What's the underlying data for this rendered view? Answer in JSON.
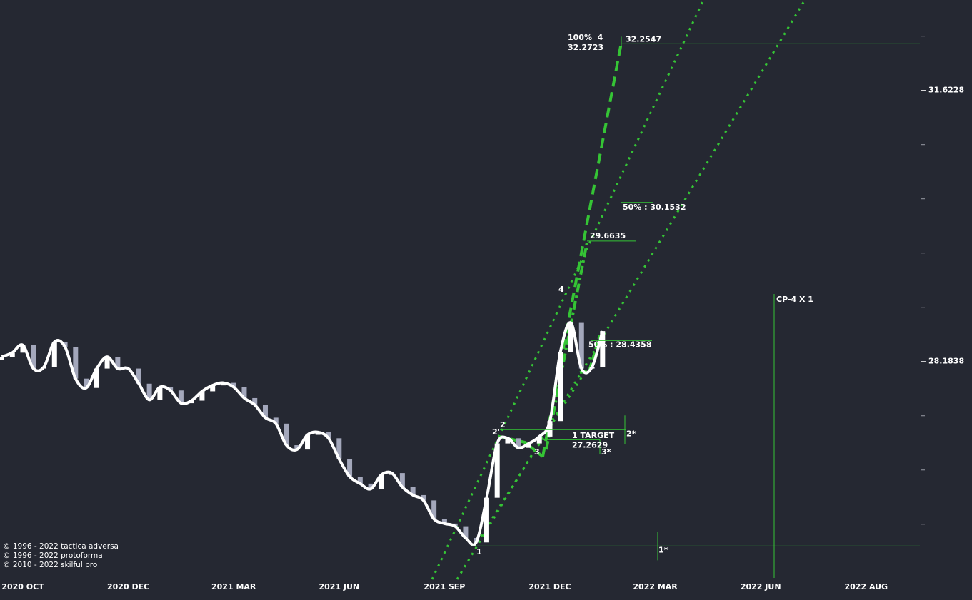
{
  "chart_data": {
    "type": "candlestick",
    "log_scale": true,
    "ylim": [
      25.71,
      32.86
    ],
    "yticks": [
      31.6228,
      28.1838
    ],
    "minor_yticks": [
      32.3594,
      30.903,
      30.1995,
      29.5121,
      28.8403,
      27.5423,
      26.9153,
      26.3027
    ],
    "categories": [
      null,
      null,
      "2020 OCT",
      null,
      null,
      null,
      null,
      null,
      null,
      null,
      null,
      null,
      "2020 DEC",
      null,
      null,
      null,
      null,
      null,
      null,
      null,
      null,
      null,
      "2021 MAR",
      null,
      null,
      null,
      null,
      null,
      null,
      null,
      null,
      null,
      "2021 JUN",
      null,
      null,
      null,
      null,
      null,
      null,
      null,
      null,
      null,
      "2021 SEP",
      null,
      null,
      null,
      null,
      null,
      null,
      null,
      null,
      null,
      "2021 DEC",
      null,
      null,
      null,
      null,
      null,
      null,
      null,
      null,
      null,
      "2022 MAR",
      null,
      null,
      null,
      null,
      null,
      null,
      null,
      null,
      null,
      "2022 JUN",
      null,
      null,
      null,
      null,
      null,
      null,
      null,
      null,
      null,
      "2022 AUG",
      null,
      null,
      null
    ],
    "open": [
      28.2,
      28.24,
      28.29,
      28.38,
      28.1,
      28.12,
      28.42,
      28.36,
      27.98,
      27.87,
      28.1,
      28.24,
      28.1,
      28.1,
      27.92,
      27.73,
      27.88,
      27.84,
      27.69,
      27.72,
      27.83,
      27.9,
      27.93,
      27.88,
      27.75,
      27.67,
      27.52,
      27.45,
      27.2,
      27.15,
      27.32,
      27.35,
      27.28,
      27.04,
      26.84,
      26.76,
      26.7,
      26.86,
      26.88,
      26.72,
      26.63,
      26.57,
      26.36,
      26.31,
      26.28,
      26.15,
      26.1,
      26.6,
      27.22,
      27.28,
      27.17,
      27.22,
      27.3,
      27.48,
      28.3,
      28.65,
      28.1,
      28.12,
      null,
      null,
      null,
      null,
      null,
      null,
      null,
      null,
      null,
      null,
      null,
      null,
      null,
      null,
      null,
      null,
      null,
      null,
      null,
      null,
      null,
      null,
      null,
      null,
      null,
      null,
      null,
      null
    ],
    "close": [
      28.24,
      28.29,
      28.38,
      28.1,
      28.12,
      28.42,
      28.36,
      27.98,
      27.87,
      28.1,
      28.24,
      28.1,
      28.1,
      27.92,
      27.73,
      27.88,
      27.84,
      27.69,
      27.72,
      27.83,
      27.9,
      27.93,
      27.88,
      27.75,
      27.67,
      27.52,
      27.45,
      27.2,
      27.15,
      27.32,
      27.35,
      27.28,
      27.04,
      26.84,
      26.76,
      26.7,
      26.86,
      26.88,
      26.72,
      26.63,
      26.57,
      26.36,
      26.31,
      26.28,
      26.15,
      26.1,
      26.6,
      27.22,
      27.28,
      27.17,
      27.22,
      27.3,
      27.48,
      28.3,
      28.65,
      28.1,
      28.12,
      28.55,
      null,
      null,
      null,
      null,
      null,
      null,
      null,
      null,
      null,
      null,
      null,
      null,
      null,
      null,
      null,
      null,
      null,
      null,
      null,
      null,
      null,
      null,
      null,
      null,
      null,
      null,
      null,
      null
    ],
    "up_color": "#ffffff",
    "down_color": "#a3a7bb",
    "line_color": "#ffffff",
    "annotation_color": "#35c435",
    "levels": [
      {
        "label": "32.2547",
        "value": 32.2547
      },
      {
        "label": "50% : 30.1532",
        "value": 30.1532
      },
      {
        "label": "29.6635",
        "value": 29.6635
      },
      {
        "label": "50% : 28.4358",
        "value": 28.4358
      },
      {
        "label": "2*",
        "value": 27.38
      },
      {
        "label": "27.2629",
        "value": 27.2629
      },
      {
        "label": "1*",
        "value": 26.06
      }
    ],
    "annotations": [
      "100%  4",
      "32.2723",
      "1 TARGET",
      "3*",
      "CP-4 X 1",
      "1",
      "2",
      "2'",
      "3",
      "4"
    ],
    "copyright": [
      "© 1996 - 2022 tactica adversa",
      "© 1996 - 2022 protoforma",
      "© 2010 - 2022 skilful pro"
    ]
  }
}
